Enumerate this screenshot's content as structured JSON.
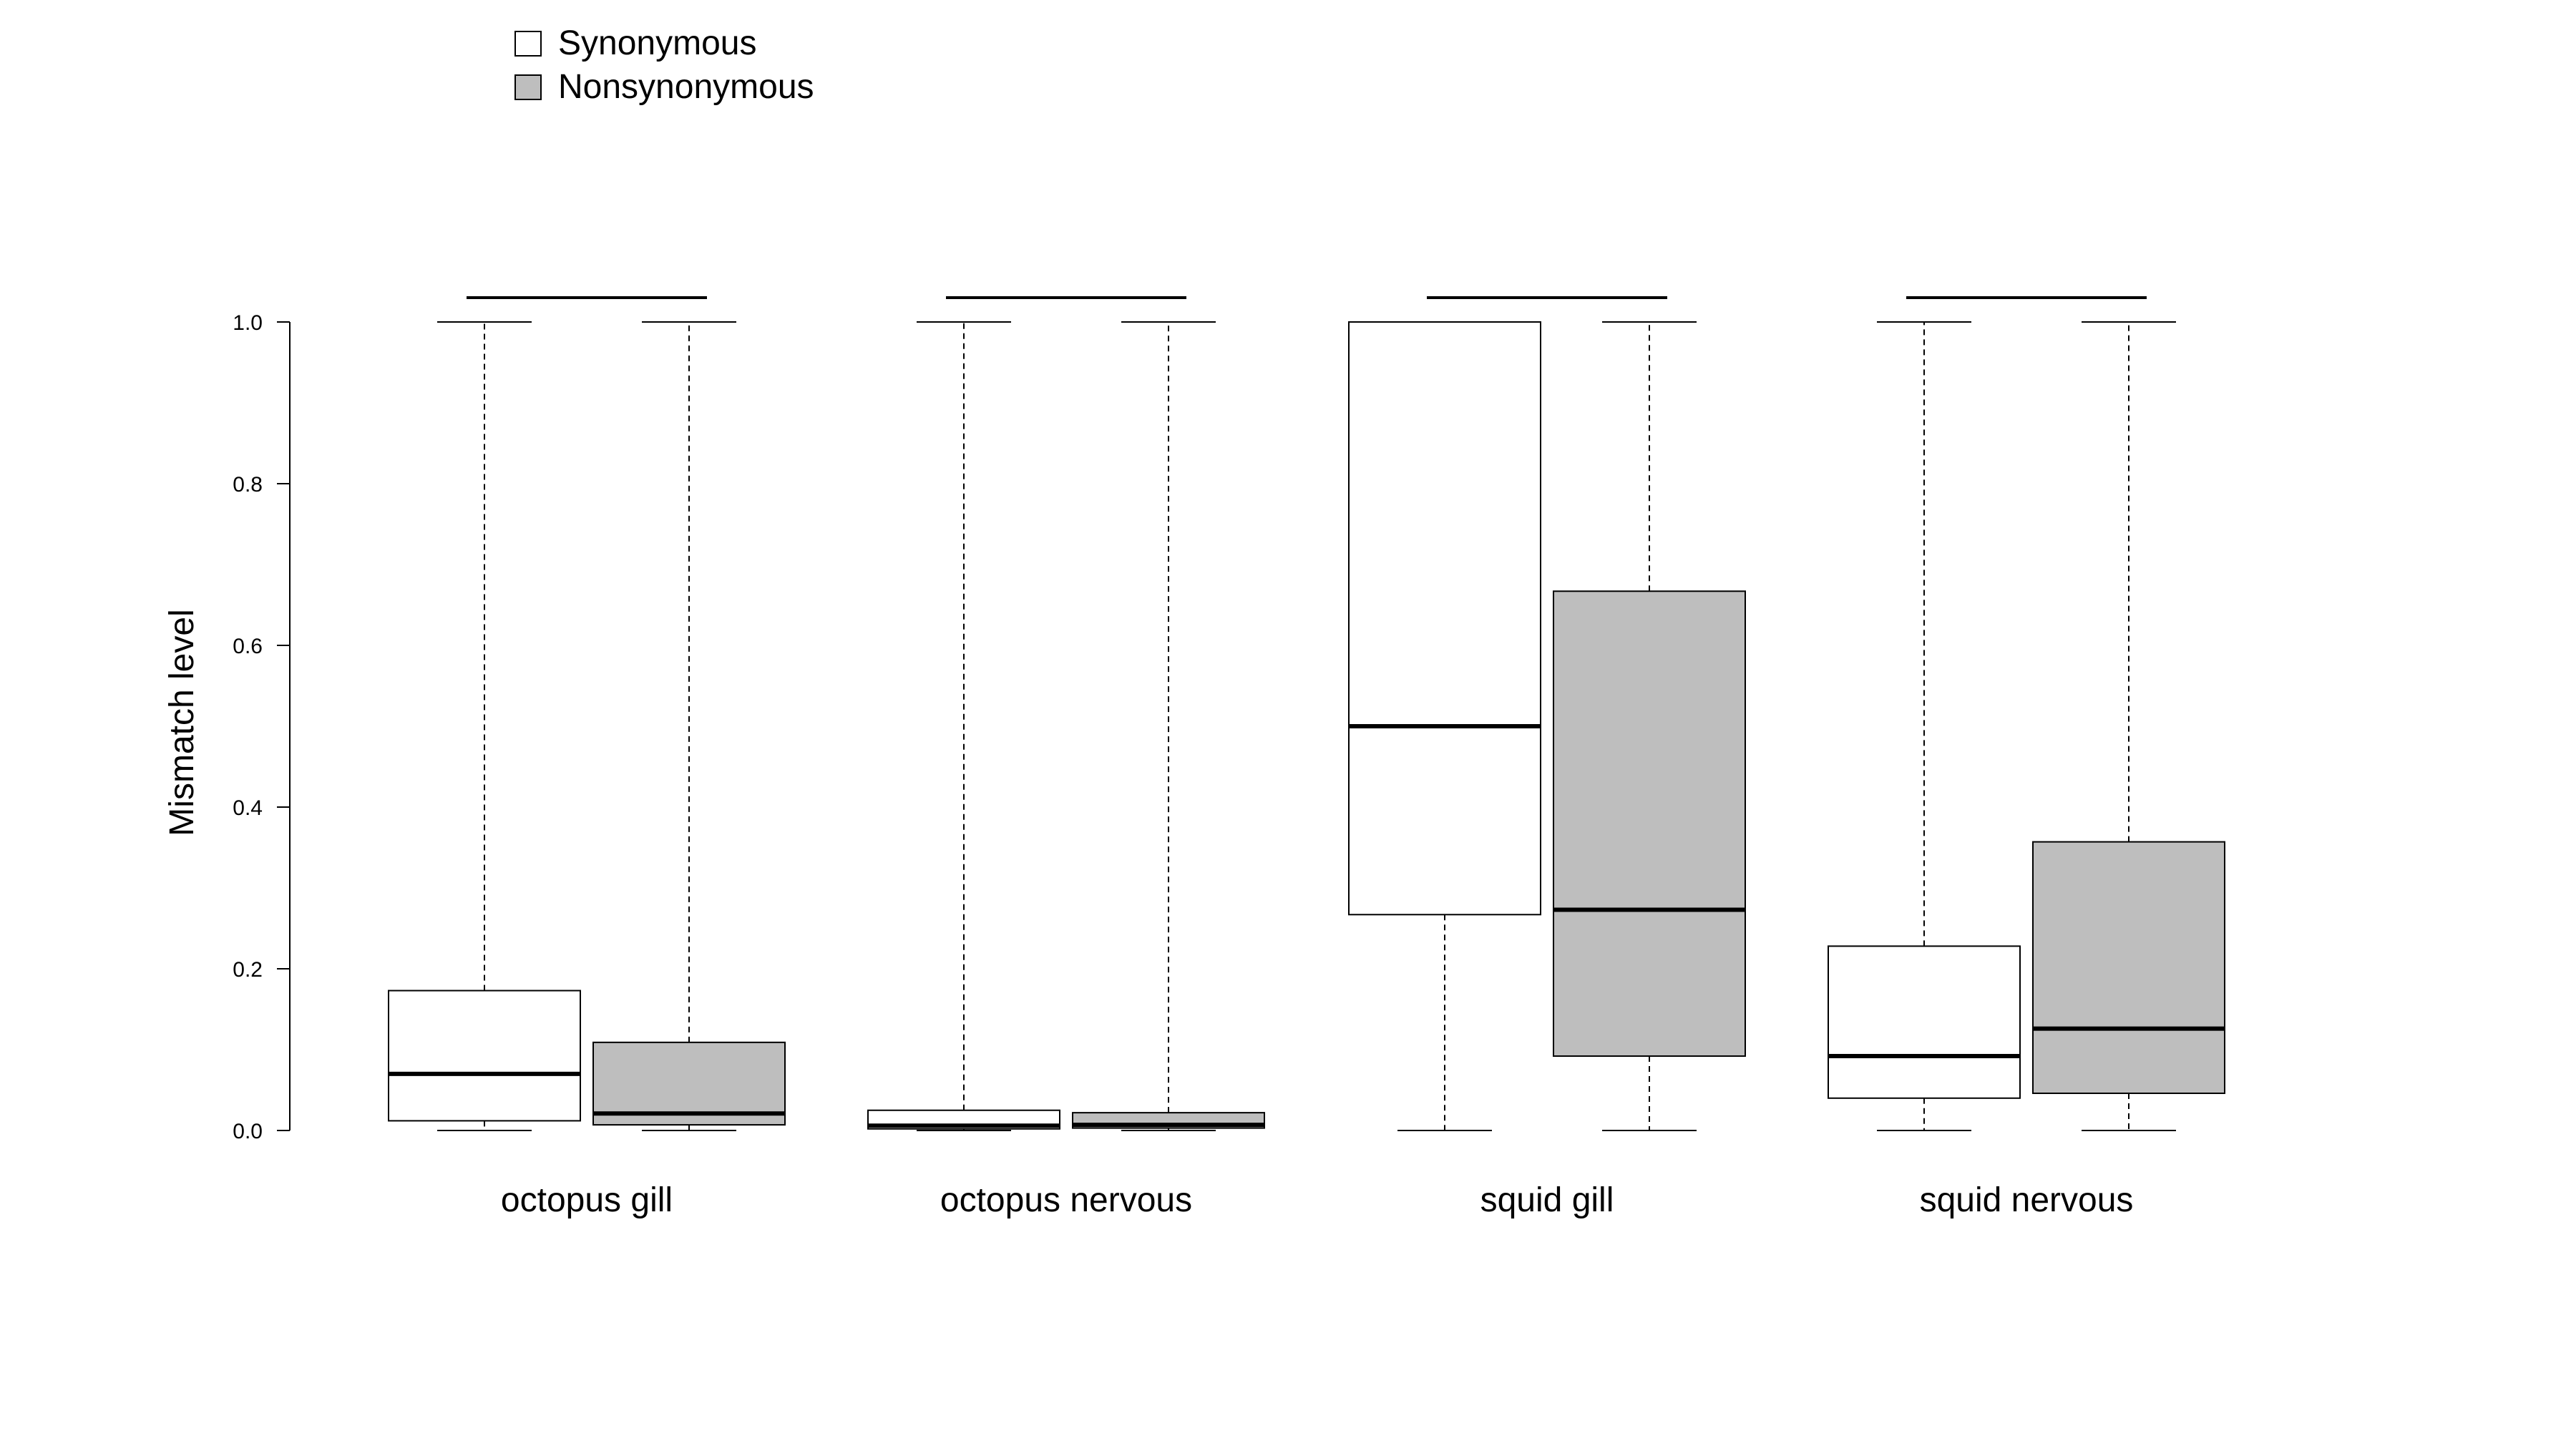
{
  "chart_data": {
    "type": "box",
    "ylabel": "Mismatch level",
    "ylim": [
      0,
      1
    ],
    "yticks": [
      0.0,
      0.2,
      0.4,
      0.6,
      0.8,
      1.0
    ],
    "ytick_labels": [
      "0.0",
      "0.2",
      "0.4",
      "0.6",
      "0.8",
      "1.0"
    ],
    "categories": [
      "octopus gill",
      "octopus nervous",
      "squid gill",
      "squid nervous"
    ],
    "legend": {
      "position": "top-left",
      "entries": [
        {
          "name": "Synonymous",
          "fill": "#ffffff"
        },
        {
          "name": "Nonsynonymous",
          "fill": "#bebebe"
        }
      ]
    },
    "series": [
      {
        "name": "Synonymous",
        "fill": "#ffffff",
        "boxes": [
          {
            "min": 0.0,
            "q1": 0.012,
            "median": 0.07,
            "q3": 0.173,
            "max": 1.0
          },
          {
            "min": 0.0,
            "q1": 0.002,
            "median": 0.006,
            "q3": 0.025,
            "max": 1.0
          },
          {
            "min": 0.0,
            "q1": 0.267,
            "median": 0.5,
            "q3": 1.0,
            "max": 1.0
          },
          {
            "min": 0.0,
            "q1": 0.04,
            "median": 0.092,
            "q3": 0.228,
            "max": 1.0
          }
        ]
      },
      {
        "name": "Nonsynonymous",
        "fill": "#bebebe",
        "boxes": [
          {
            "min": 0.0,
            "q1": 0.007,
            "median": 0.021,
            "q3": 0.109,
            "max": 1.0
          },
          {
            "min": 0.0,
            "q1": 0.003,
            "median": 0.007,
            "q3": 0.022,
            "max": 1.0
          },
          {
            "min": 0.0,
            "q1": 0.092,
            "median": 0.273,
            "q3": 0.667,
            "max": 1.0
          },
          {
            "min": 0.0,
            "q1": 0.046,
            "median": 0.126,
            "q3": 0.357,
            "max": 1.0
          }
        ]
      }
    ],
    "significance_bars": true
  }
}
